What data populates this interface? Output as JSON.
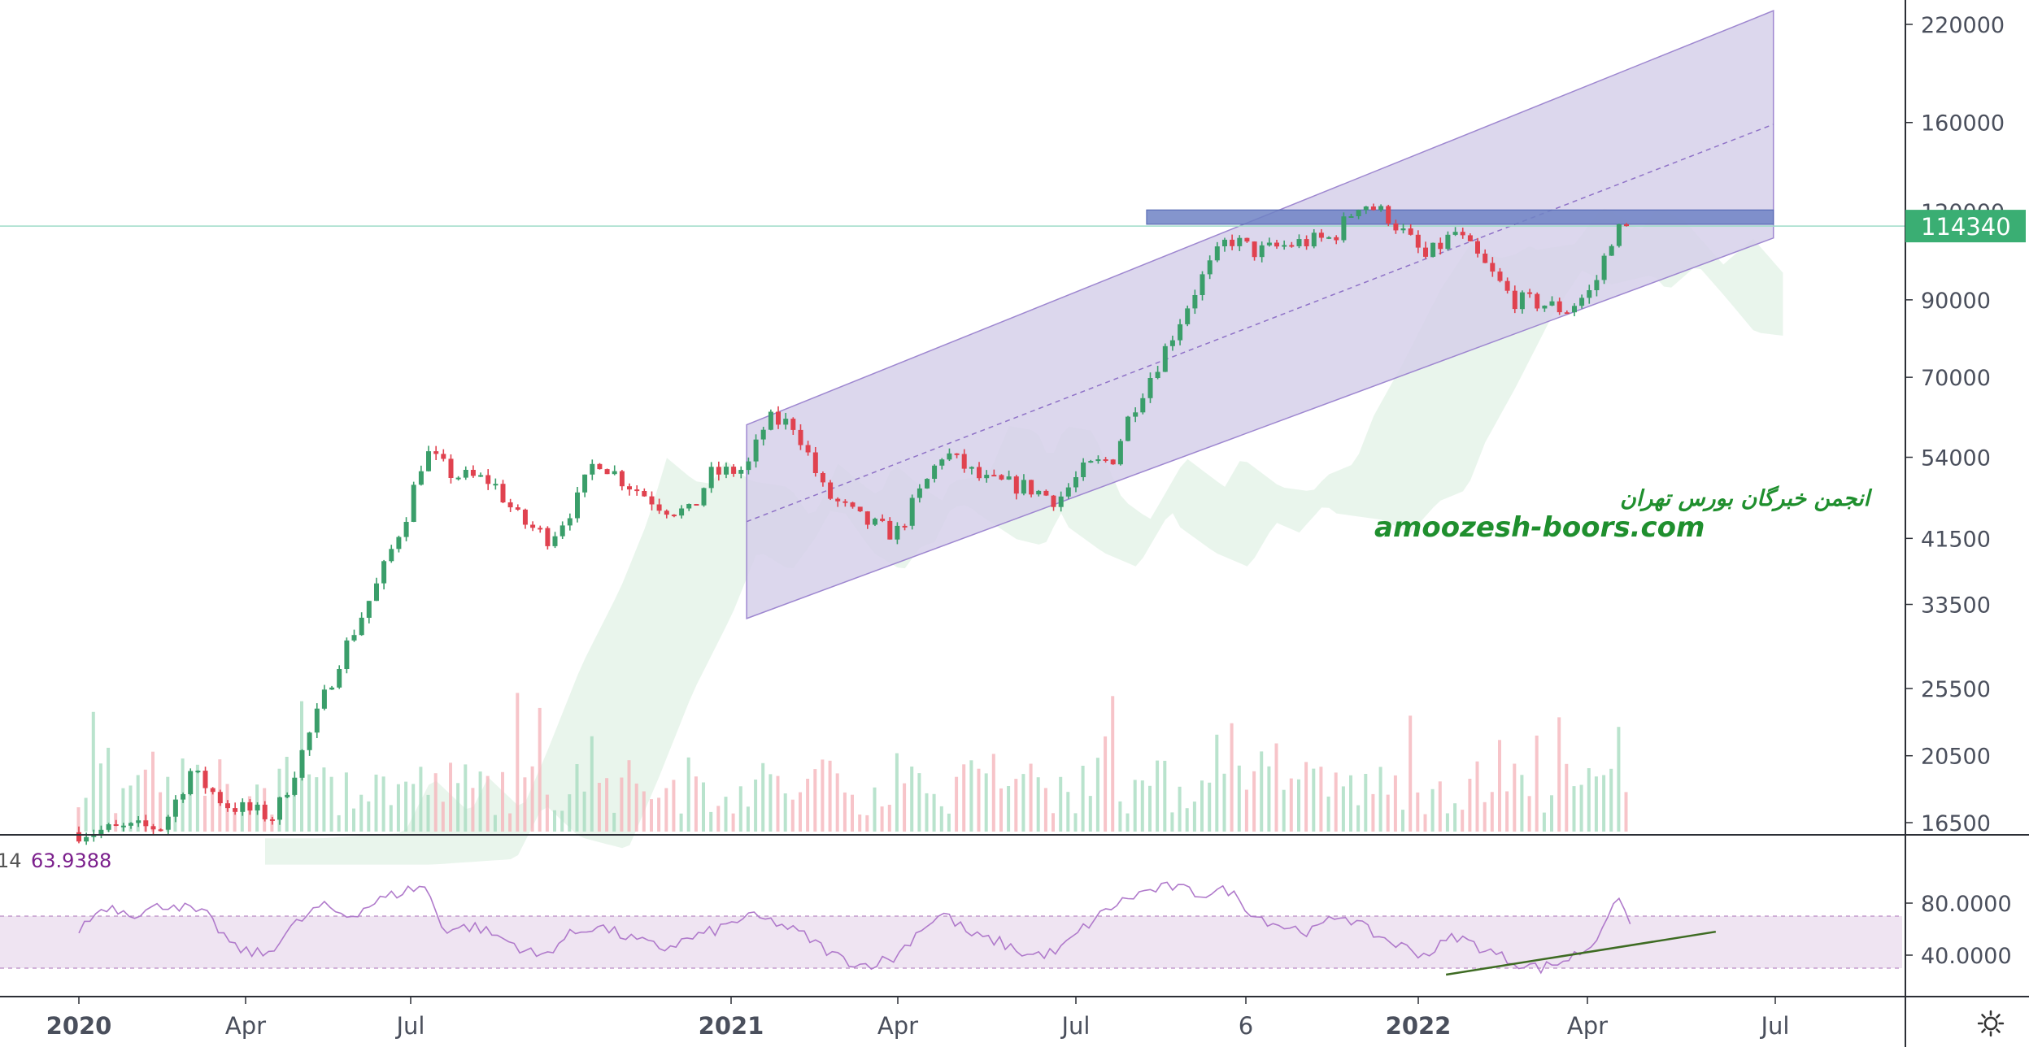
{
  "chart_data": {
    "type": "candlestick",
    "scale": "log",
    "price_axis": {
      "ticks": [
        220000,
        160000,
        120000,
        90000,
        70000,
        54000,
        41500,
        33500,
        25500,
        20500,
        16500
      ]
    },
    "tick_labels": [
      "220000",
      "160000",
      "120000",
      "90000",
      "70000",
      "54000",
      "41500",
      "33500",
      "25500",
      "20500",
      "16500"
    ],
    "last_price": 114340,
    "last_price_label": "114340",
    "time_axis": {
      "labels": [
        {
          "text": "2020",
          "bold": true
        },
        {
          "text": "Apr",
          "bold": false
        },
        {
          "text": "Jul",
          "bold": false
        },
        {
          "text": "2021",
          "bold": true
        },
        {
          "text": "Apr",
          "bold": false
        },
        {
          "text": "Jul",
          "bold": false
        },
        {
          "text": "6",
          "bold": false
        },
        {
          "text": "2022",
          "bold": true
        },
        {
          "text": "Apr",
          "bold": false
        },
        {
          "text": "Jul",
          "bold": false
        }
      ]
    },
    "price_path": [
      [
        "2020-01-01",
        16000
      ],
      [
        "2020-02-15",
        16300
      ],
      [
        "2020-03-01",
        19500
      ],
      [
        "2020-03-20",
        17500
      ],
      [
        "2020-04-15",
        16800
      ],
      [
        "2020-05-01",
        21000
      ],
      [
        "2020-05-20",
        28000
      ],
      [
        "2020-06-10",
        36000
      ],
      [
        "2020-06-25",
        45000
      ],
      [
        "2020-07-05",
        55000
      ],
      [
        "2020-07-20",
        51000
      ],
      [
        "2020-08-10",
        50000
      ],
      [
        "2020-08-25",
        44000
      ],
      [
        "2020-09-10",
        41500
      ],
      [
        "2020-09-25",
        47000
      ],
      [
        "2020-10-05",
        54000
      ],
      [
        "2020-10-20",
        50000
      ],
      [
        "2020-11-10",
        46000
      ],
      [
        "2020-11-25",
        45000
      ],
      [
        "2020-12-05",
        51000
      ],
      [
        "2020-12-25",
        52000
      ],
      [
        "2021-01-05",
        61000
      ],
      [
        "2021-01-20",
        60000
      ],
      [
        "2021-02-05",
        48000
      ],
      [
        "2021-02-25",
        44000
      ],
      [
        "2021-03-15",
        42000
      ],
      [
        "2021-03-28",
        48000
      ],
      [
        "2021-04-10",
        55000
      ],
      [
        "2021-05-01",
        50000
      ],
      [
        "2021-05-25",
        49000
      ],
      [
        "2021-06-10",
        47000
      ],
      [
        "2021-06-25",
        52000
      ],
      [
        "2021-07-10",
        54000
      ],
      [
        "2021-07-20",
        63000
      ],
      [
        "2021-08-05",
        75000
      ],
      [
        "2021-08-25",
        95000
      ],
      [
        "2021-09-10",
        110000
      ],
      [
        "2021-09-25",
        105000
      ],
      [
        "2021-10-15",
        108000
      ],
      [
        "2021-11-05",
        110000
      ],
      [
        "2021-11-20",
        124000
      ],
      [
        "2021-12-05",
        118000
      ],
      [
        "2021-12-25",
        103000
      ],
      [
        "2022-01-10",
        112000
      ],
      [
        "2022-01-25",
        101000
      ],
      [
        "2022-02-10",
        90000
      ],
      [
        "2022-02-25",
        89000
      ],
      [
        "2022-03-10",
        87000
      ],
      [
        "2022-03-25",
        93000
      ],
      [
        "2022-04-05",
        112000
      ],
      [
        "2022-04-15",
        114340
      ]
    ],
    "rsi": {
      "period": 14,
      "period_label": "14",
      "value": 63.9388,
      "value_label": "63.9388",
      "ticks": [
        80,
        40
      ],
      "tick_labels": [
        "80.0000",
        "40.0000"
      ],
      "band": [
        70,
        30
      ],
      "path": [
        [
          "2020-01-01",
          60
        ],
        [
          "2020-01-15",
          78
        ],
        [
          "2020-02-01",
          72
        ],
        [
          "2020-02-20",
          80
        ],
        [
          "2020-03-10",
          70
        ],
        [
          "2020-03-25",
          45
        ],
        [
          "2020-04-10",
          40
        ],
        [
          "2020-04-25",
          62
        ],
        [
          "2020-05-10",
          78
        ],
        [
          "2020-05-25",
          70
        ],
        [
          "2020-06-10",
          82
        ],
        [
          "2020-06-25",
          90
        ],
        [
          "2020-07-05",
          93
        ],
        [
          "2020-07-15",
          60
        ],
        [
          "2020-08-01",
          62
        ],
        [
          "2020-08-20",
          50
        ],
        [
          "2020-09-05",
          38
        ],
        [
          "2020-09-20",
          55
        ],
        [
          "2020-10-05",
          63
        ],
        [
          "2020-10-25",
          52
        ],
        [
          "2020-11-10",
          45
        ],
        [
          "2020-11-25",
          53
        ],
        [
          "2020-12-10",
          60
        ],
        [
          "2020-12-25",
          70
        ],
        [
          "2021-01-10",
          65
        ],
        [
          "2021-01-25",
          55
        ],
        [
          "2021-02-10",
          40
        ],
        [
          "2021-02-25",
          32
        ],
        [
          "2021-03-15",
          38
        ],
        [
          "2021-03-28",
          60
        ],
        [
          "2021-04-10",
          72
        ],
        [
          "2021-04-25",
          55
        ],
        [
          "2021-05-10",
          50
        ],
        [
          "2021-05-25",
          40
        ],
        [
          "2021-06-10",
          42
        ],
        [
          "2021-06-25",
          62
        ],
        [
          "2021-07-10",
          78
        ],
        [
          "2021-07-25",
          88
        ],
        [
          "2021-08-10",
          93
        ],
        [
          "2021-08-25",
          87
        ],
        [
          "2021-09-10",
          90
        ],
        [
          "2021-09-25",
          70
        ],
        [
          "2021-10-10",
          62
        ],
        [
          "2021-10-25",
          58
        ],
        [
          "2021-11-10",
          72
        ],
        [
          "2021-11-25",
          58
        ],
        [
          "2021-12-10",
          48
        ],
        [
          "2021-12-25",
          40
        ],
        [
          "2022-01-10",
          55
        ],
        [
          "2022-01-25",
          45
        ],
        [
          "2022-02-10",
          35
        ],
        [
          "2022-02-25",
          30
        ],
        [
          "2022-03-10",
          36
        ],
        [
          "2022-03-25",
          48
        ],
        [
          "2022-04-01",
          70
        ],
        [
          "2022-04-10",
          82
        ],
        [
          "2022-04-15",
          64
        ]
      ]
    },
    "channel": {
      "start": {
        "date": "2020-12-25",
        "lower": 32000,
        "upper": 60000
      },
      "end": {
        "date": "2022-06-30",
        "lower": 110000,
        "upper": 230000
      }
    },
    "resistance_zone": {
      "from_date": "2021-07-28",
      "to_date": "2022-06-30",
      "low": 115000,
      "high": 120500
    },
    "rsi_trendline": {
      "from": [
        "2022-01-05",
        25
      ],
      "to": [
        "2022-05-30",
        58
      ]
    },
    "colors": {
      "up": "#26a69a",
      "down": "#ef5350",
      "up_candle": "#3a9e6a",
      "down_candle": "#e0424f",
      "channel_fill": "#d6d0ea",
      "channel_line": "#9e87d0",
      "zone": "#6f82c4",
      "rsi_line": "#b07acb",
      "rsi_band": "#efe4f2",
      "rsi_label": "#7b1f8c",
      "badge": "#3aae73",
      "trendline": "#3e6b23",
      "last_price_line": "#9ddcc8"
    }
  },
  "watermark": {
    "line1": "انجمن خبرگان بورس تهران",
    "line2": "amoozesh-boors.com"
  },
  "icons": {
    "settings": "gear-icon"
  }
}
